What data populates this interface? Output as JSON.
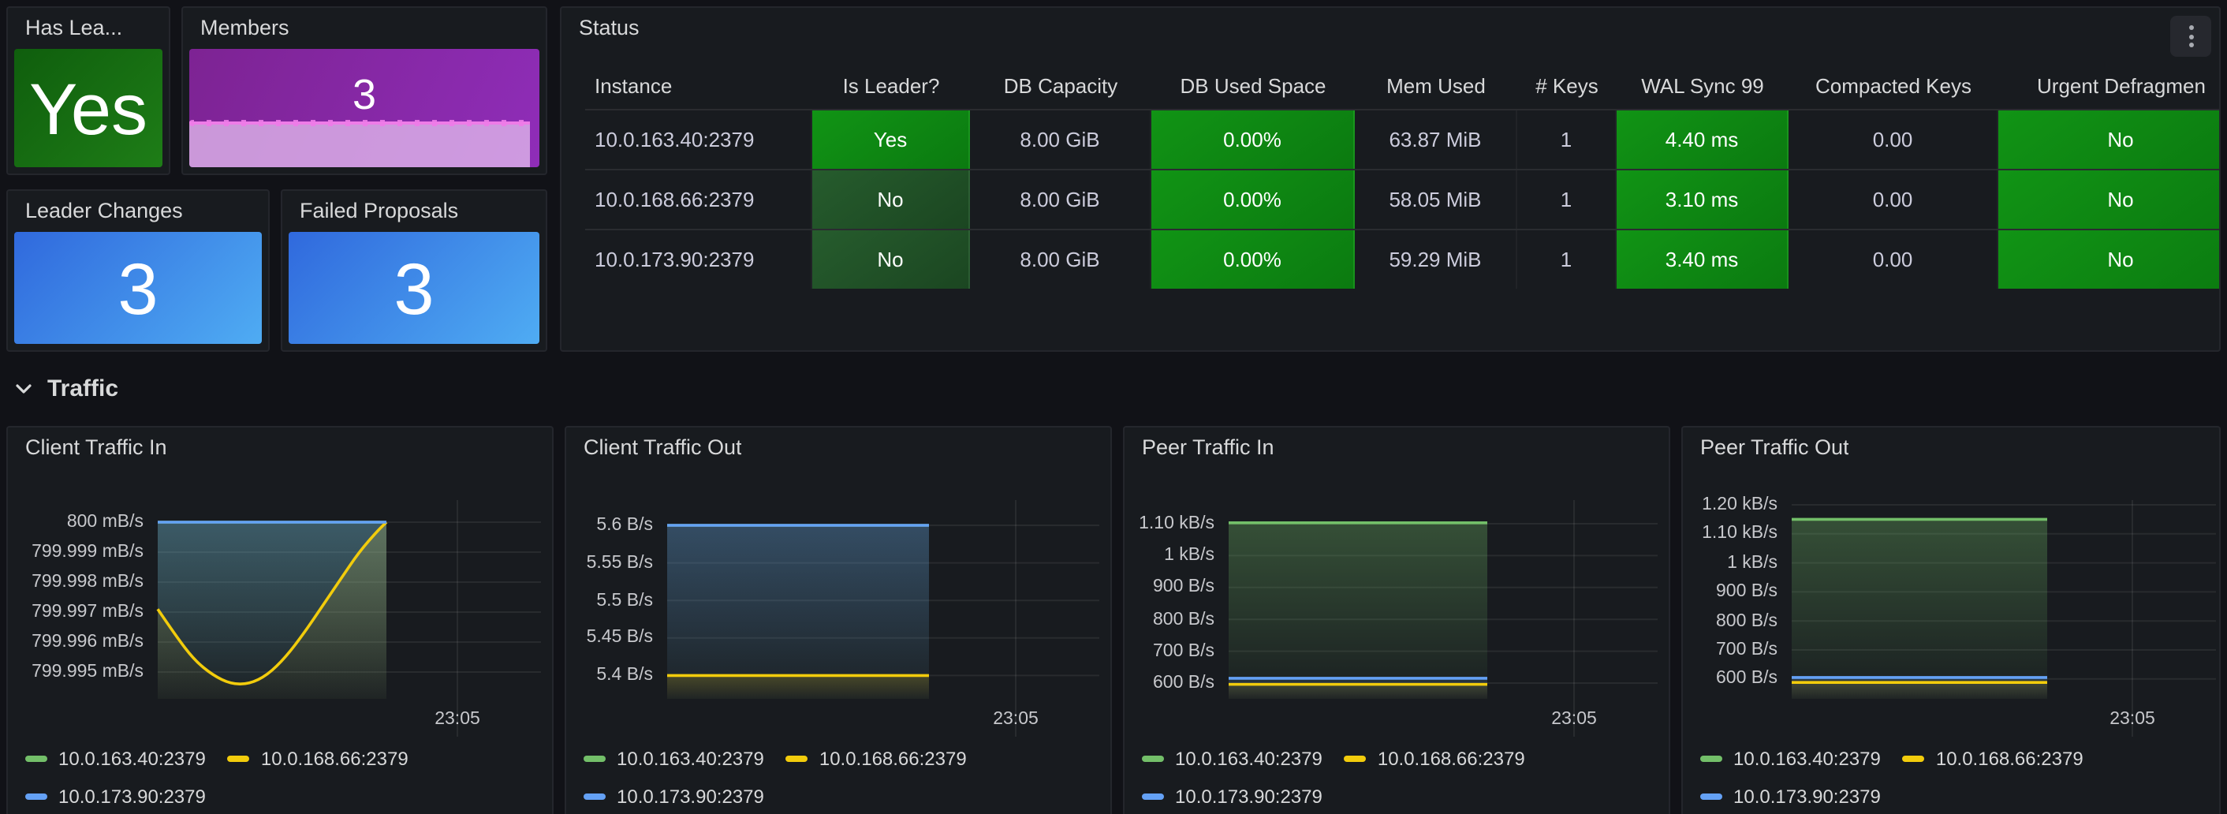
{
  "stats": {
    "has_leader": {
      "title": "Has Lea...",
      "value": "Yes"
    },
    "members": {
      "title": "Members",
      "value": "3"
    },
    "leader_changes": {
      "title": "Leader Changes",
      "value": "3"
    },
    "failed_proposals": {
      "title": "Failed Proposals",
      "value": "3"
    }
  },
  "status_table": {
    "title": "Status",
    "columns": [
      "Instance",
      "Is Leader?",
      "DB Capacity",
      "DB Used Space",
      "Mem Used",
      "# Keys",
      "WAL Sync 99",
      "Compacted Keys",
      "Urgent Defragmen"
    ],
    "rows": [
      {
        "instance": "10.0.163.40:2379",
        "is_leader": "Yes",
        "db_capacity": "8.00 GiB",
        "db_used": "0.00%",
        "mem_used": "63.87 MiB",
        "keys": "1",
        "wal_sync": "4.40 ms",
        "compacted": "0.00",
        "defrag": "No"
      },
      {
        "instance": "10.0.168.66:2379",
        "is_leader": "No",
        "db_capacity": "8.00 GiB",
        "db_used": "0.00%",
        "mem_used": "58.05 MiB",
        "keys": "1",
        "wal_sync": "3.10 ms",
        "compacted": "0.00",
        "defrag": "No"
      },
      {
        "instance": "10.0.173.90:2379",
        "is_leader": "No",
        "db_capacity": "8.00 GiB",
        "db_used": "0.00%",
        "mem_used": "59.29 MiB",
        "keys": "1",
        "wal_sync": "3.40 ms",
        "compacted": "0.00",
        "defrag": "No"
      }
    ]
  },
  "section": {
    "title": "Traffic"
  },
  "charts": [
    {
      "type": "area",
      "title": "Client Traffic In",
      "x_tick": "23:05",
      "y_ticks": [
        "800 mB/s",
        "799.999 mB/s",
        "799.998 mB/s",
        "799.997 mB/s",
        "799.996 mB/s",
        "799.995 mB/s"
      ],
      "ymax": 800,
      "ystep": 0.001,
      "layout": {
        "gutter": 95,
        "tick0": 60,
        "tick_step": 19,
        "data_end": 240
      },
      "series": [
        {
          "name": "10.0.163.40:2379",
          "color": "#73BF69",
          "fill_opacity": 0.22,
          "points": [
            [
              0,
              800
            ],
            [
              1,
              800
            ]
          ]
        },
        {
          "name": "10.0.168.66:2379",
          "color": "#F2CC0C",
          "fill_opacity": 0.24,
          "points": [
            [
              0,
              799.9971
            ],
            [
              0.08,
              799.9962
            ],
            [
              0.16,
              799.9954
            ],
            [
              0.24,
              799.9949
            ],
            [
              0.32,
              799.9946
            ],
            [
              0.4,
              799.9946
            ],
            [
              0.48,
              799.9949
            ],
            [
              0.56,
              799.9955
            ],
            [
              0.64,
              799.9963
            ],
            [
              0.72,
              799.9972
            ],
            [
              0.8,
              799.9981
            ],
            [
              0.88,
              799.999
            ],
            [
              0.96,
              799.9997
            ],
            [
              1,
              800
            ]
          ]
        },
        {
          "name": "10.0.173.90:2379",
          "color": "#64A1F5",
          "fill_opacity": 0.28,
          "points": [
            [
              0,
              800
            ],
            [
              1,
              800
            ]
          ]
        }
      ]
    },
    {
      "type": "area",
      "title": "Client Traffic Out",
      "x_tick": "23:05",
      "y_ticks": [
        "5.6 B/s",
        "5.55 B/s",
        "5.5 B/s",
        "5.45 B/s",
        "5.4 B/s"
      ],
      "ymax": 5.6,
      "ystep": 0.05,
      "layout": {
        "gutter": 64,
        "tick0": 62,
        "tick_step": 23.8,
        "data_end": 230
      },
      "series": [
        {
          "name": "10.0.163.40:2379",
          "color": "#73BF69",
          "fill_opacity": 0.08,
          "points": [
            [
              0,
              5.6
            ],
            [
              1,
              5.6
            ]
          ]
        },
        {
          "name": "10.0.168.66:2379",
          "color": "#F2CC0C",
          "fill_opacity": 0.2,
          "points": [
            [
              0,
              5.4
            ],
            [
              1,
              5.4
            ]
          ]
        },
        {
          "name": "10.0.173.90:2379",
          "color": "#64A1F5",
          "fill_opacity": 0.3,
          "points": [
            [
              0,
              5.6
            ],
            [
              1,
              5.6
            ]
          ]
        }
      ]
    },
    {
      "type": "area",
      "title": "Peer Traffic In",
      "x_tick": "23:05",
      "y_ticks": [
        "1.10 kB/s",
        "1 kB/s",
        "900 B/s",
        "800 B/s",
        "700 B/s",
        "600 B/s"
      ],
      "ymax": 1100,
      "ystep": 100,
      "layout": {
        "gutter": 66,
        "tick0": 61,
        "tick_step": 20.2,
        "data_end": 230
      },
      "series": [
        {
          "name": "10.0.163.40:2379",
          "color": "#73BF69",
          "fill_opacity": 0.32,
          "points": [
            [
              0,
              1103
            ],
            [
              1,
              1103
            ]
          ]
        },
        {
          "name": "10.0.168.66:2379",
          "color": "#F2CC0C",
          "fill_opacity": 0.14,
          "points": [
            [
              0,
              596
            ],
            [
              1,
              596
            ]
          ]
        },
        {
          "name": "10.0.173.90:2379",
          "color": "#64A1F5",
          "fill_opacity": 0.14,
          "points": [
            [
              0,
              615
            ],
            [
              1,
              615
            ]
          ]
        }
      ]
    },
    {
      "type": "area",
      "title": "Peer Traffic Out",
      "x_tick": "23:05",
      "y_ticks": [
        "1.20 kB/s",
        "1.10 kB/s",
        "1 kB/s",
        "900 B/s",
        "800 B/s",
        "700 B/s",
        "600 B/s"
      ],
      "ymax": 1200,
      "ystep": 100,
      "layout": {
        "gutter": 69,
        "tick0": 49,
        "tick_step": 18.4,
        "data_end": 231
      },
      "series": [
        {
          "name": "10.0.163.40:2379",
          "color": "#73BF69",
          "fill_opacity": 0.32,
          "points": [
            [
              0,
              1150
            ],
            [
              1,
              1150
            ]
          ]
        },
        {
          "name": "10.0.168.66:2379",
          "color": "#F2CC0C",
          "fill_opacity": 0.14,
          "points": [
            [
              0,
              588
            ],
            [
              1,
              588
            ]
          ]
        },
        {
          "name": "10.0.173.90:2379",
          "color": "#64A1F5",
          "fill_opacity": 0.14,
          "points": [
            [
              0,
              605
            ],
            [
              1,
              605
            ]
          ]
        }
      ]
    }
  ],
  "colors": {
    "page_bg": "#111217",
    "panel_bg": "#181B1F",
    "panel_border": "#24262C",
    "text_primary": "#D8D9DA",
    "text_secondary": "#C7C8CC",
    "table_text": "#CCCCDC",
    "cell_green_hi": "#119415",
    "cell_green_lo": "#0B7A10",
    "cell_darkgreen_hi": "#265C2D",
    "cell_darkgreen_lo": "#1B4621",
    "stat_green_a": "#0F5E0D",
    "stat_green_b": "#1E7D17",
    "stat_blue_a": "#3069DD",
    "stat_blue_b": "#4FACF3",
    "stat_purple_a": "#7D2393",
    "stat_purple_b": "#8F2DB8",
    "members_fill": "rgba(224,184,236,0.78)",
    "members_line": "#EE7BE8",
    "series_green": "#73BF69",
    "series_yellow": "#F2CC0C",
    "series_blue": "#64A1F5"
  }
}
